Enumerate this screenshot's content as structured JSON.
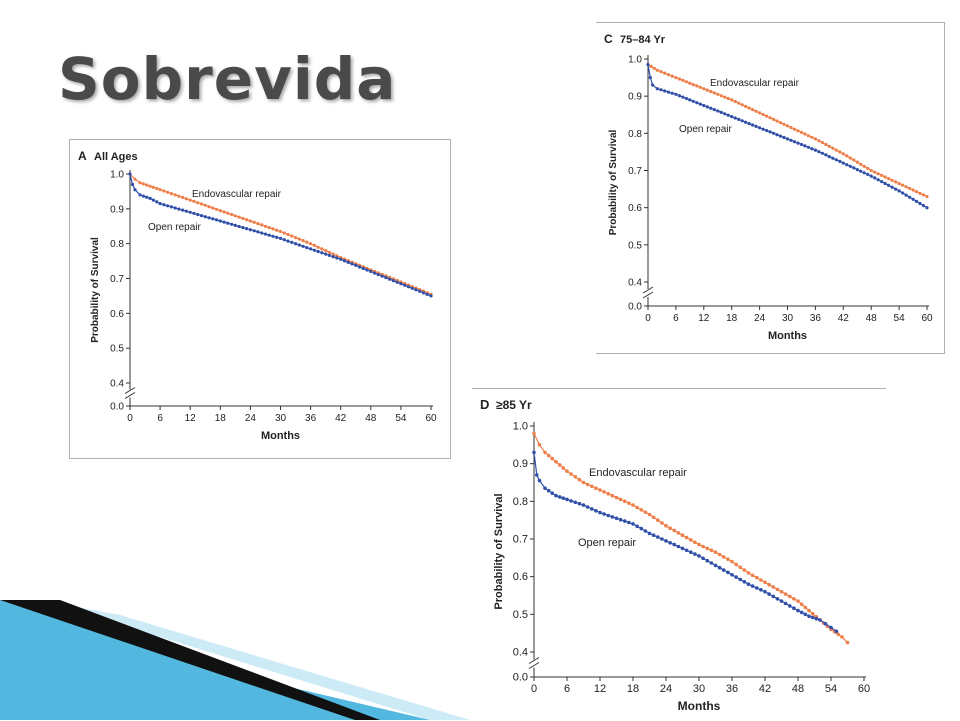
{
  "slide": {
    "title": "Sobrevida",
    "colors": {
      "endo": "#ef7f4a",
      "open": "#2f4fa8",
      "title": "#4a4a4a",
      "deco_dark": "#111111",
      "deco_blue": "#3fb0dc"
    }
  },
  "chart_data": [
    {
      "type": "line",
      "panel_letter": "A",
      "panel_title": "All Ages",
      "xlabel": "Months",
      "ylabel": "Probability of Survival",
      "xlim": [
        0,
        60
      ],
      "ylim": [
        0.0,
        1.0
      ],
      "axis_break": [
        0.0,
        0.4
      ],
      "x_ticks": [
        "0",
        "6",
        "12",
        "18",
        "24",
        "30",
        "36",
        "42",
        "48",
        "54",
        "60"
      ],
      "y_ticks": [
        "0.0",
        "0.4",
        "0.5",
        "0.6",
        "0.7",
        "0.8",
        "0.9",
        "1.0"
      ],
      "grid": false,
      "series": [
        {
          "name": "Endovascular repair",
          "color": "#ef7f4a",
          "points": [
            [
              0,
              1.0
            ],
            [
              1,
              0.985
            ],
            [
              2,
              0.975
            ],
            [
              4,
              0.965
            ],
            [
              6,
              0.955
            ],
            [
              12,
              0.925
            ],
            [
              18,
              0.895
            ],
            [
              24,
              0.865
            ],
            [
              30,
              0.835
            ],
            [
              36,
              0.8
            ],
            [
              42,
              0.76
            ],
            [
              48,
              0.725
            ],
            [
              54,
              0.69
            ],
            [
              60,
              0.655
            ]
          ]
        },
        {
          "name": "Open repair",
          "color": "#2f4fa8",
          "points": [
            [
              0,
              1.0
            ],
            [
              0.5,
              0.97
            ],
            [
              1,
              0.955
            ],
            [
              2,
              0.94
            ],
            [
              4,
              0.93
            ],
            [
              6,
              0.915
            ],
            [
              12,
              0.89
            ],
            [
              18,
              0.865
            ],
            [
              24,
              0.84
            ],
            [
              30,
              0.815
            ],
            [
              36,
              0.785
            ],
            [
              42,
              0.755
            ],
            [
              48,
              0.72
            ],
            [
              54,
              0.685
            ],
            [
              60,
              0.65
            ]
          ]
        }
      ]
    },
    {
      "type": "line",
      "panel_letter": "C",
      "panel_title": "75–84 Yr",
      "xlabel": "Months",
      "ylabel": "Probability of Survival",
      "xlim": [
        0,
        60
      ],
      "ylim": [
        0.0,
        1.0
      ],
      "axis_break": [
        0.0,
        0.4
      ],
      "x_ticks": [
        "0",
        "6",
        "12",
        "18",
        "24",
        "30",
        "36",
        "42",
        "48",
        "54",
        "60"
      ],
      "y_ticks": [
        "0.0",
        "0.4",
        "0.5",
        "0.6",
        "0.7",
        "0.8",
        "0.9",
        "1.0"
      ],
      "grid": false,
      "series": [
        {
          "name": "Endovascular repair",
          "color": "#ef7f4a",
          "points": [
            [
              0,
              0.985
            ],
            [
              2,
              0.97
            ],
            [
              6,
              0.95
            ],
            [
              12,
              0.92
            ],
            [
              18,
              0.89
            ],
            [
              24,
              0.855
            ],
            [
              30,
              0.82
            ],
            [
              36,
              0.785
            ],
            [
              42,
              0.745
            ],
            [
              48,
              0.7
            ],
            [
              54,
              0.665
            ],
            [
              60,
              0.63
            ]
          ]
        },
        {
          "name": "Open repair",
          "color": "#2f4fa8",
          "points": [
            [
              0,
              0.985
            ],
            [
              0.5,
              0.95
            ],
            [
              1,
              0.93
            ],
            [
              2,
              0.92
            ],
            [
              6,
              0.905
            ],
            [
              12,
              0.875
            ],
            [
              18,
              0.845
            ],
            [
              24,
              0.815
            ],
            [
              30,
              0.785
            ],
            [
              36,
              0.755
            ],
            [
              42,
              0.72
            ],
            [
              48,
              0.685
            ],
            [
              54,
              0.645
            ],
            [
              60,
              0.6
            ]
          ]
        }
      ]
    },
    {
      "type": "line",
      "panel_letter": "D",
      "panel_title": "≥85 Yr",
      "xlabel": "Months",
      "ylabel": "Probability of Survival",
      "xlim": [
        0,
        60
      ],
      "ylim": [
        0.0,
        1.0
      ],
      "axis_break": [
        0.0,
        0.4
      ],
      "x_ticks": [
        "0",
        "6",
        "12",
        "18",
        "24",
        "30",
        "36",
        "42",
        "48",
        "54",
        "60"
      ],
      "y_ticks": [
        "0.0",
        "0.4",
        "0.5",
        "0.6",
        "0.7",
        "0.8",
        "0.9",
        "1.0"
      ],
      "grid": false,
      "series": [
        {
          "name": "Endovascular repair",
          "color": "#ef7f4a",
          "points": [
            [
              0,
              0.98
            ],
            [
              1,
              0.95
            ],
            [
              2,
              0.93
            ],
            [
              4,
              0.905
            ],
            [
              6,
              0.88
            ],
            [
              9,
              0.85
            ],
            [
              12,
              0.83
            ],
            [
              15,
              0.81
            ],
            [
              18,
              0.79
            ],
            [
              21,
              0.765
            ],
            [
              24,
              0.735
            ],
            [
              27,
              0.71
            ],
            [
              30,
              0.685
            ],
            [
              33,
              0.665
            ],
            [
              36,
              0.64
            ],
            [
              39,
              0.61
            ],
            [
              42,
              0.585
            ],
            [
              45,
              0.56
            ],
            [
              48,
              0.535
            ],
            [
              50,
              0.51
            ],
            [
              52,
              0.485
            ],
            [
              54,
              0.46
            ],
            [
              56,
              0.44
            ],
            [
              57,
              0.425
            ]
          ]
        },
        {
          "name": "Open repair",
          "color": "#2f4fa8",
          "points": [
            [
              0,
              0.93
            ],
            [
              0.5,
              0.87
            ],
            [
              1,
              0.855
            ],
            [
              2,
              0.835
            ],
            [
              4,
              0.815
            ],
            [
              6,
              0.805
            ],
            [
              9,
              0.79
            ],
            [
              12,
              0.77
            ],
            [
              15,
              0.755
            ],
            [
              18,
              0.74
            ],
            [
              21,
              0.715
            ],
            [
              24,
              0.695
            ],
            [
              27,
              0.675
            ],
            [
              30,
              0.655
            ],
            [
              33,
              0.63
            ],
            [
              36,
              0.605
            ],
            [
              39,
              0.58
            ],
            [
              42,
              0.56
            ],
            [
              45,
              0.535
            ],
            [
              48,
              0.51
            ],
            [
              50,
              0.495
            ],
            [
              52,
              0.485
            ],
            [
              53,
              0.475
            ],
            [
              54,
              0.465
            ],
            [
              55,
              0.455
            ]
          ]
        }
      ]
    }
  ]
}
